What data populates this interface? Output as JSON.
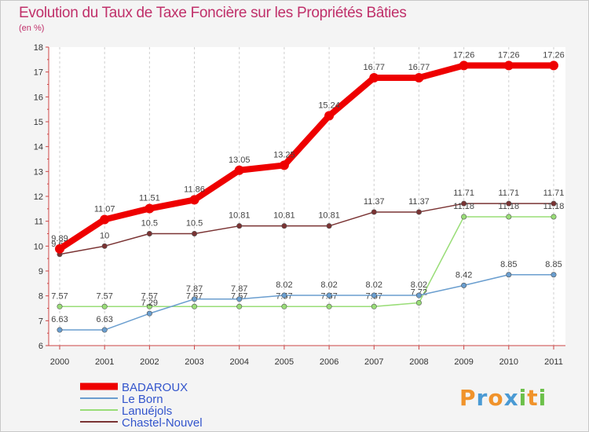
{
  "title": "Evolution du Taux de Taxe Foncière sur les Propriétés Bâties",
  "unit_label": "(en %)",
  "logo": {
    "letters": [
      "P",
      "r",
      "o",
      "x",
      "i",
      "t",
      "i"
    ],
    "colors": [
      "#f0932b",
      "#4a9ad4",
      "#f0932b",
      "#4a9ad4",
      "#6cc04a",
      "#f0932b",
      "#6cc04a"
    ]
  },
  "chart_data": {
    "type": "line",
    "x": [
      2000,
      2001,
      2002,
      2003,
      2004,
      2005,
      2006,
      2007,
      2008,
      2009,
      2010,
      2011
    ],
    "ylim": [
      6,
      18
    ],
    "y_ticks": [
      6,
      7,
      8,
      9,
      10,
      11,
      12,
      13,
      14,
      15,
      16,
      17,
      18
    ],
    "grid": "vertical-dashed",
    "legend_placement": "bottom-left",
    "series": [
      {
        "name": "BADAROUX",
        "color": "#ee0000",
        "values": [
          9.89,
          11.07,
          11.51,
          11.86,
          13.05,
          13.25,
          15.24,
          16.77,
          16.77,
          17.26,
          17.26,
          17.26
        ],
        "labels": [
          "9.89",
          "11.07",
          "11.51",
          "11.86",
          "13.05",
          "13.25",
          "15.24",
          "16.77",
          "16.77",
          "17.26",
          "17.26",
          "17.26"
        ]
      },
      {
        "name": "Le Born",
        "color": "#6a9ecf",
        "values": [
          6.63,
          6.63,
          7.29,
          7.87,
          7.87,
          8.02,
          8.02,
          8.02,
          8.02,
          8.42,
          8.85,
          8.85
        ],
        "labels": [
          "6.63",
          "6.63",
          "7.29",
          "7.87",
          "7.87",
          "8.02",
          "8.02",
          "8.02",
          "8.02",
          "8.42",
          "8.85",
          "8.85"
        ]
      },
      {
        "name": "Lanuéjols",
        "color": "#99dd77",
        "values": [
          7.57,
          7.57,
          7.57,
          7.57,
          7.57,
          7.57,
          7.57,
          7.57,
          7.72,
          11.18,
          11.18,
          11.18
        ],
        "labels": [
          "7.57",
          "7.57",
          "7.57",
          "7.57",
          "7.57",
          "7.57",
          "7.57",
          "7.57",
          "7.72",
          "11.18",
          "11.18",
          "11.18"
        ]
      },
      {
        "name": "Chastel-Nouvel",
        "color": "#7a3333",
        "values": [
          9.67,
          10,
          10.5,
          10.5,
          10.81,
          10.81,
          10.81,
          11.37,
          11.37,
          11.71,
          11.71,
          11.71
        ],
        "labels": [
          "9.67",
          "10",
          "10.5",
          "10.5",
          "10.81",
          "10.81",
          "10.81",
          "11.37",
          "11.37",
          "11.71",
          "11.71",
          "11.71"
        ]
      }
    ]
  }
}
